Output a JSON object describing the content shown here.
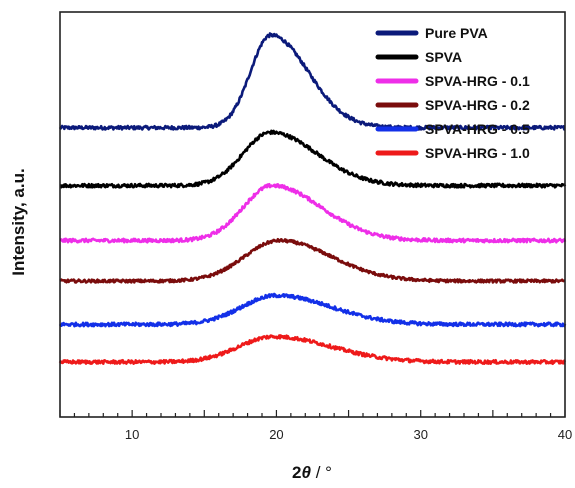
{
  "chart_data": {
    "type": "line",
    "xlabel_main": "2",
    "xlabel_theta": "θ",
    "xlabel_tail": " / °",
    "ylabel": "Intensity, a.u.",
    "xlim": [
      5,
      40
    ],
    "xticks": [
      10,
      20,
      30,
      40
    ],
    "yticks": false,
    "grid": false,
    "legend": "top-right",
    "series": [
      {
        "name": "Pure PVA",
        "color": "#0b1a7a",
        "offset": 5.0,
        "baseline": 0.0,
        "peak_x": 19.6,
        "peak_height": 1.6,
        "sigma_left": 1.4,
        "sigma_right": 2.6,
        "noise": 0.06
      },
      {
        "name": "SPVA",
        "color": "#000000",
        "offset": 4.0,
        "baseline": 0.0,
        "peak_x": 19.6,
        "peak_height": 0.92,
        "sigma_left": 1.9,
        "sigma_right": 3.2,
        "noise": 0.06
      },
      {
        "name": "SPVA-HRG - 0.1",
        "color": "#ee2ee8",
        "offset": 3.05,
        "baseline": 0.0,
        "peak_x": 19.7,
        "peak_height": 0.95,
        "sigma_left": 2.0,
        "sigma_right": 3.4,
        "noise": 0.06
      },
      {
        "name": "SPVA-HRG - 0.2",
        "color": "#7a0c0c",
        "offset": 2.35,
        "baseline": 0.0,
        "peak_x": 20.2,
        "peak_height": 0.7,
        "sigma_left": 2.4,
        "sigma_right": 3.6,
        "noise": 0.05
      },
      {
        "name": "SPVA-HRG - 0.5",
        "color": "#1330e8",
        "offset": 1.6,
        "baseline": 0.0,
        "peak_x": 20.0,
        "peak_height": 0.5,
        "sigma_left": 2.4,
        "sigma_right": 3.8,
        "noise": 0.06
      },
      {
        "name": "SPVA-HRG - 1.0",
        "color": "#ee1a1a",
        "offset": 0.95,
        "baseline": 0.0,
        "peak_x": 19.8,
        "peak_height": 0.44,
        "sigma_left": 2.4,
        "sigma_right": 4.0,
        "noise": 0.06
      }
    ]
  }
}
